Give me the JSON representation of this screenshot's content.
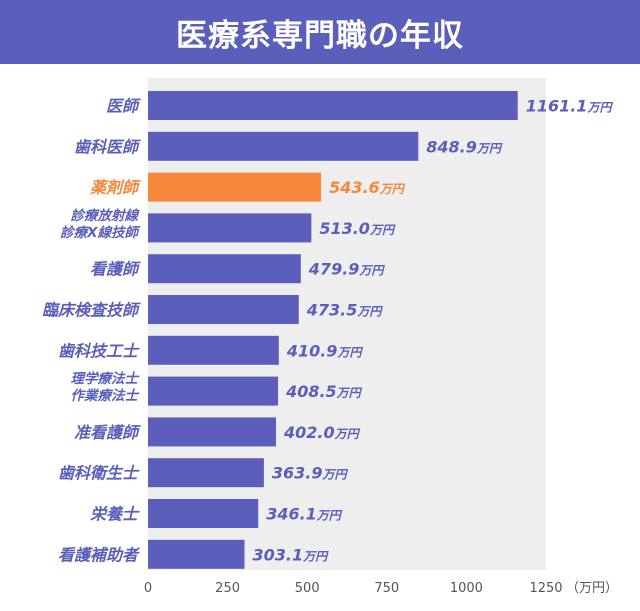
{
  "title": "医療系専門職の年収",
  "colors": {
    "title_bg": "#5b5fbb",
    "bar": "#5b5fbb",
    "highlight": "#f5883a",
    "plot_bg": "#eeeeee",
    "label": "#5b5fbb",
    "tick": "#555555"
  },
  "chart_data": {
    "type": "bar",
    "orientation": "horizontal",
    "title": "医療系専門職の年収",
    "unit": "万円",
    "xlim": [
      0,
      1250
    ],
    "xticks": [
      0,
      250,
      500,
      750,
      1000,
      1250
    ],
    "xaxis_unit_label": "（万円）",
    "grid": false,
    "highlight_index": 2,
    "categories": [
      "医師",
      "歯科医師",
      "薬剤師",
      "診療放射線\n診療X線技師",
      "看護師",
      "臨床検査技師",
      "歯科技工士",
      "理学療法士\n作業療法士",
      "准看護師",
      "歯科衛生士",
      "栄養士",
      "看護補助者"
    ],
    "values": [
      1161.1,
      848.9,
      543.6,
      513.0,
      479.9,
      473.5,
      410.9,
      408.5,
      402.0,
      363.9,
      346.1,
      303.1
    ],
    "value_labels": [
      "1161.1",
      "848.9",
      "543.6",
      "513.0",
      "479.9",
      "473.5",
      "410.9",
      "408.5",
      "402.0",
      "363.9",
      "346.1",
      "303.1"
    ]
  }
}
